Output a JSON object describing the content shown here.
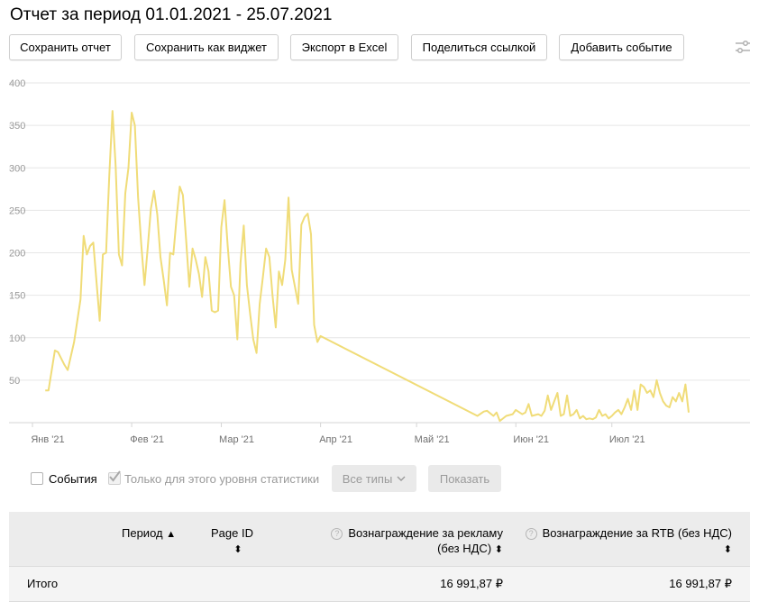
{
  "report": {
    "title": "Отчет за период 01.01.2021 - 25.07.2021"
  },
  "toolbar": {
    "save_report": "Сохранить отчет",
    "save_widget": "Сохранить как виджет",
    "export_excel": "Экспорт в Excel",
    "share_link": "Поделиться ссылкой",
    "add_event": "Добавить событие",
    "settings_icon": "sliders-icon"
  },
  "chart_data": {
    "type": "line",
    "title": "",
    "xlabel": "",
    "ylabel": "",
    "ylim": [
      0,
      400
    ],
    "yticks": [
      50,
      100,
      150,
      200,
      250,
      300,
      350,
      400
    ],
    "xticks": [
      {
        "label": "Янв '21",
        "day": 1
      },
      {
        "label": "Фев '21",
        "day": 32
      },
      {
        "label": "Мар '21",
        "day": 60
      },
      {
        "label": "Апр '21",
        "day": 91
      },
      {
        "label": "Май '21",
        "day": 121
      },
      {
        "label": "Июн '21",
        "day": 152
      },
      {
        "label": "Июл '21",
        "day": 182
      }
    ],
    "x_unit": "day of year 2021",
    "grid": true,
    "line_color": "#f0dc78",
    "series": [
      {
        "name": "",
        "points": [
          [
            5,
            38
          ],
          [
            6,
            38
          ],
          [
            8,
            85
          ],
          [
            9,
            83
          ],
          [
            11,
            68
          ],
          [
            12,
            62
          ],
          [
            14,
            95
          ],
          [
            16,
            145
          ],
          [
            17,
            220
          ],
          [
            18,
            198
          ],
          [
            19,
            208
          ],
          [
            20,
            212
          ],
          [
            22,
            120
          ],
          [
            23,
            198
          ],
          [
            24,
            200
          ],
          [
            25,
            290
          ],
          [
            26,
            367
          ],
          [
            27,
            302
          ],
          [
            28,
            198
          ],
          [
            29,
            185
          ],
          [
            30,
            270
          ],
          [
            31,
            300
          ],
          [
            32,
            365
          ],
          [
            33,
            350
          ],
          [
            34,
            265
          ],
          [
            35,
            210
          ],
          [
            36,
            162
          ],
          [
            37,
            205
          ],
          [
            38,
            252
          ],
          [
            39,
            273
          ],
          [
            40,
            245
          ],
          [
            41,
            195
          ],
          [
            42,
            168
          ],
          [
            43,
            138
          ],
          [
            44,
            200
          ],
          [
            45,
            198
          ],
          [
            46,
            240
          ],
          [
            47,
            278
          ],
          [
            48,
            268
          ],
          [
            49,
            215
          ],
          [
            50,
            160
          ],
          [
            51,
            205
          ],
          [
            52,
            192
          ],
          [
            53,
            175
          ],
          [
            54,
            148
          ],
          [
            55,
            195
          ],
          [
            56,
            178
          ],
          [
            57,
            132
          ],
          [
            58,
            130
          ],
          [
            59,
            132
          ],
          [
            60,
            230
          ],
          [
            61,
            262
          ],
          [
            62,
            208
          ],
          [
            63,
            160
          ],
          [
            64,
            150
          ],
          [
            65,
            98
          ],
          [
            66,
            188
          ],
          [
            67,
            232
          ],
          [
            68,
            162
          ],
          [
            69,
            128
          ],
          [
            70,
            98
          ],
          [
            71,
            82
          ],
          [
            72,
            140
          ],
          [
            73,
            172
          ],
          [
            74,
            205
          ],
          [
            75,
            195
          ],
          [
            76,
            150
          ],
          [
            77,
            112
          ],
          [
            78,
            178
          ],
          [
            79,
            162
          ],
          [
            80,
            192
          ],
          [
            81,
            265
          ],
          [
            82,
            180
          ],
          [
            83,
            160
          ],
          [
            84,
            140
          ],
          [
            85,
            233
          ],
          [
            86,
            242
          ],
          [
            87,
            246
          ],
          [
            88,
            222
          ],
          [
            89,
            115
          ],
          [
            90,
            95
          ],
          [
            91,
            102
          ],
          [
            140,
            8
          ],
          [
            142,
            13
          ],
          [
            143,
            14
          ],
          [
            145,
            8
          ],
          [
            146,
            12
          ],
          [
            147,
            2
          ],
          [
            149,
            8
          ],
          [
            151,
            10
          ],
          [
            152,
            15
          ],
          [
            154,
            10
          ],
          [
            155,
            12
          ],
          [
            156,
            22
          ],
          [
            157,
            8
          ],
          [
            159,
            10
          ],
          [
            160,
            8
          ],
          [
            161,
            14
          ],
          [
            162,
            32
          ],
          [
            163,
            15
          ],
          [
            164,
            25
          ],
          [
            165,
            35
          ],
          [
            166,
            8
          ],
          [
            167,
            10
          ],
          [
            168,
            32
          ],
          [
            169,
            8
          ],
          [
            170,
            10
          ],
          [
            171,
            15
          ],
          [
            172,
            5
          ],
          [
            173,
            8
          ],
          [
            174,
            4
          ],
          [
            175,
            5
          ],
          [
            176,
            4
          ],
          [
            177,
            6
          ],
          [
            178,
            15
          ],
          [
            179,
            8
          ],
          [
            180,
            10
          ],
          [
            181,
            5
          ],
          [
            182,
            8
          ],
          [
            183,
            12
          ],
          [
            184,
            15
          ],
          [
            185,
            10
          ],
          [
            186,
            18
          ],
          [
            187,
            28
          ],
          [
            188,
            15
          ],
          [
            189,
            38
          ],
          [
            190,
            15
          ],
          [
            191,
            45
          ],
          [
            192,
            42
          ],
          [
            193,
            35
          ],
          [
            194,
            38
          ],
          [
            195,
            30
          ],
          [
            196,
            50
          ],
          [
            197,
            35
          ],
          [
            198,
            25
          ],
          [
            199,
            20
          ],
          [
            200,
            18
          ],
          [
            201,
            30
          ],
          [
            202,
            25
          ],
          [
            203,
            35
          ],
          [
            204,
            25
          ],
          [
            205,
            45
          ],
          [
            206,
            12
          ]
        ]
      }
    ]
  },
  "events": {
    "events_label": "События",
    "level_only_label": "Только для этого уровня статистики",
    "all_types_label": "Все типы",
    "show_label": "Показать"
  },
  "table": {
    "headers": {
      "period": "Период",
      "page_id": "Page ID",
      "reward_ads_line1": "Вознаграждение за рекламу",
      "reward_ads_line2": "(без НДС)",
      "reward_rtb": "Вознаграждение за RTB (без НДС)"
    },
    "total_row": {
      "label": "Итого",
      "reward_ads": "16 991,87 ₽",
      "reward_rtb": "16 991,87 ₽"
    }
  }
}
